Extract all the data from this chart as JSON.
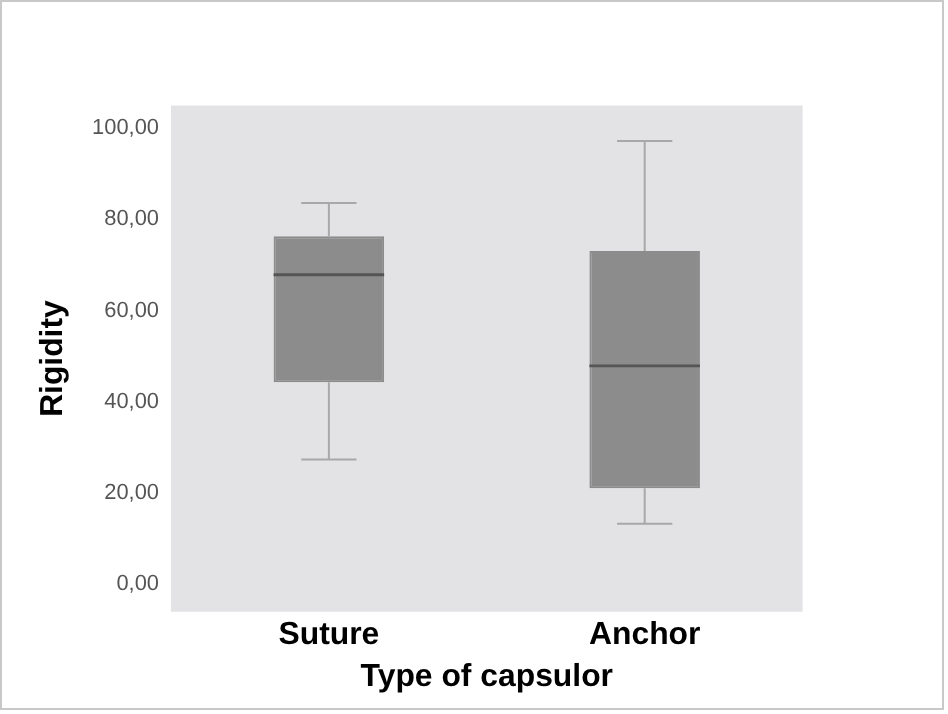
{
  "chart_data": {
    "type": "box",
    "xlabel": "Type of capsulor",
    "ylabel": "Rigidity",
    "categories": [
      "Suture",
      "Anchor"
    ],
    "boxes": [
      {
        "low": 27.4,
        "q1": 44.3,
        "median": 67.9,
        "q3": 76.3,
        "high": 83.6
      },
      {
        "low": 13.3,
        "q1": 21.1,
        "median": 47.9,
        "q3": 73.1,
        "high": 97.2
      }
    ],
    "color": "#8c8c8c",
    "ylim": [
      -6,
      105
    ],
    "yticks": [
      {
        "value": 0,
        "label": "0,00"
      },
      {
        "value": 20,
        "label": "20,00"
      },
      {
        "value": 40,
        "label": "40,00"
      },
      {
        "value": 60,
        "label": "60,00"
      },
      {
        "value": 80,
        "label": "80,00"
      },
      {
        "value": 100,
        "label": "100,00"
      }
    ],
    "grid": false,
    "legend": false
  }
}
